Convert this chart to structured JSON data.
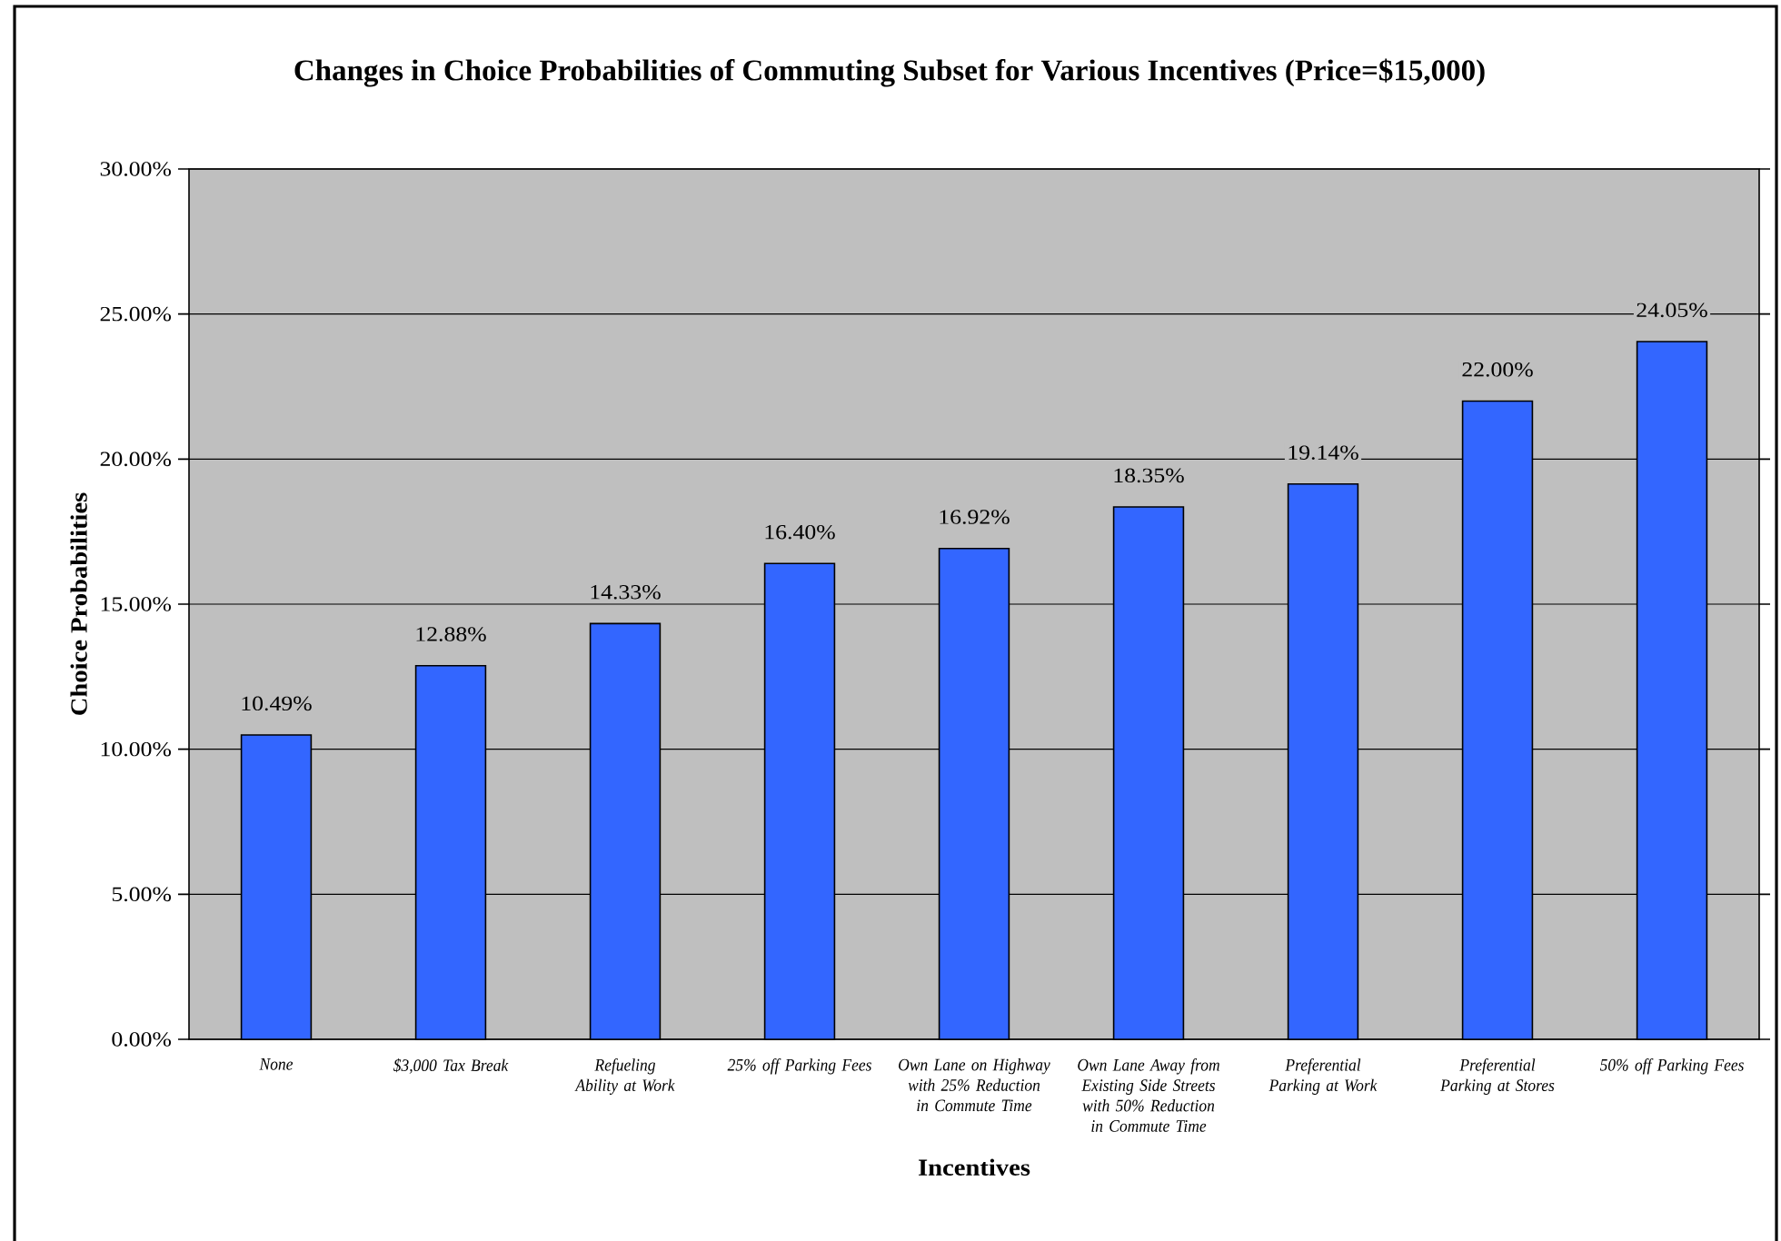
{
  "chart_data": {
    "type": "bar",
    "title": "Changes in Choice Probabilities of Commuting Subset for Various Incentives (Price=$15,000)",
    "xlabel": "Incentives",
    "ylabel": "Choice Probabilities",
    "categories": [
      "None",
      "$3,000 Tax Break",
      "Refueling Ability at Work",
      "25% off Parking Fees",
      "Own Lane on Highway with 25% Reduction in Commute Time",
      "Own Lane Away from Existing Side Streets with 50% Reduction in Commute Time",
      "Preferential Parking at Work",
      "Preferential Parking at Stores",
      "50% off Parking Fees"
    ],
    "values": [
      10.49,
      12.88,
      14.33,
      16.4,
      16.92,
      18.35,
      19.14,
      22.0,
      24.05
    ],
    "value_labels": [
      "10.49%",
      "12.88%",
      "14.33%",
      "16.40%",
      "16.92%",
      "18.35%",
      "19.14%",
      "22.00%",
      "24.05%"
    ],
    "color": "#3366ff",
    "ylim": [
      0,
      30
    ],
    "yticks": [
      {
        "value": 0,
        "label": "0.00%"
      },
      {
        "value": 5,
        "label": "5.00%"
      },
      {
        "value": 10,
        "label": "10.00%"
      },
      {
        "value": 15,
        "label": "15.00%"
      },
      {
        "value": 20,
        "label": "20.00%"
      },
      {
        "value": 25,
        "label": "25.00%"
      },
      {
        "value": 30,
        "label": "30.00%"
      }
    ],
    "grid": "y"
  }
}
